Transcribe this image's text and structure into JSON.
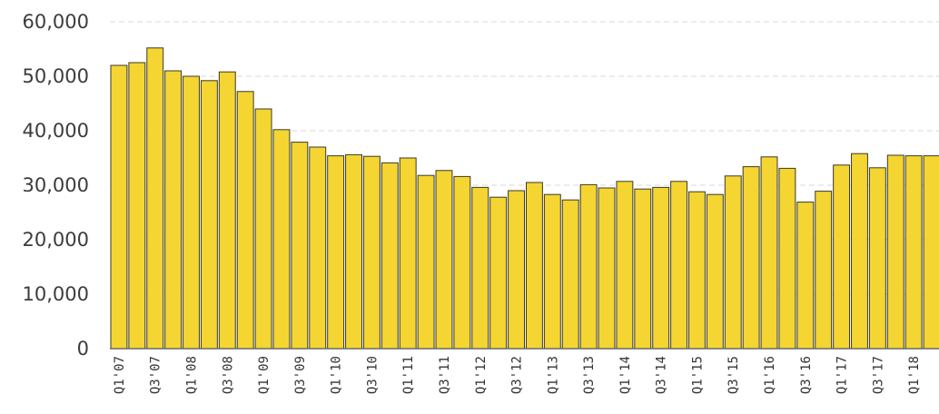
{
  "chart_data": {
    "type": "bar",
    "title": "",
    "xlabel": "",
    "ylabel": "",
    "ylim": [
      0,
      60000
    ],
    "yticks": [
      0,
      10000,
      20000,
      30000,
      40000,
      50000,
      60000
    ],
    "ytick_labels": [
      "0",
      "10,000",
      "20,000",
      "30,000",
      "40,000",
      "50,000",
      "60,000"
    ],
    "grid": true,
    "bar_color": "#f4d531",
    "categories": [
      "Q1'07",
      "Q2'07",
      "Q3'07",
      "Q4'07",
      "Q1'08",
      "Q2'08",
      "Q3'08",
      "Q4'08",
      "Q1'09",
      "Q2'09",
      "Q3'09",
      "Q4'09",
      "Q1'10",
      "Q2'10",
      "Q3'10",
      "Q4'10",
      "Q1'11",
      "Q2'11",
      "Q3'11",
      "Q4'11",
      "Q1'12",
      "Q2'12",
      "Q3'12",
      "Q4'12",
      "Q1'13",
      "Q2'13",
      "Q3'13",
      "Q4'13",
      "Q1'14",
      "Q2'14",
      "Q3'14",
      "Q4'14",
      "Q1'15",
      "Q2'15",
      "Q3'15",
      "Q4'15",
      "Q1'16",
      "Q2'16",
      "Q3'16",
      "Q4'16",
      "Q1'17",
      "Q2'17",
      "Q3'17",
      "Q4'17",
      "Q1'18",
      "Q2'18"
    ],
    "shown_tick_labels": [
      "Q1'07",
      "Q3'07",
      "Q1'08",
      "Q3'08",
      "Q1'09",
      "Q3'09",
      "Q1'10",
      "Q3'10",
      "Q1'11",
      "Q3'11",
      "Q1'12",
      "Q3'12",
      "Q1'13",
      "Q3'13",
      "Q1'14",
      "Q3'14",
      "Q1'15",
      "Q3'15",
      "Q1'16",
      "Q3'16",
      "Q1'17",
      "Q3'17",
      "Q1'18"
    ],
    "values": [
      52000,
      52500,
      55200,
      51000,
      50000,
      49200,
      50800,
      47200,
      44000,
      40200,
      37900,
      37000,
      35400,
      35600,
      35300,
      34100,
      35000,
      31800,
      32700,
      31600,
      29600,
      27800,
      29000,
      30500,
      28300,
      27300,
      30100,
      29500,
      30700,
      29300,
      29600,
      30700,
      28800,
      28300,
      31700,
      33400,
      35200,
      33100,
      26900,
      28900,
      33700,
      35800,
      33200,
      35500,
      35400,
      35400
    ]
  }
}
